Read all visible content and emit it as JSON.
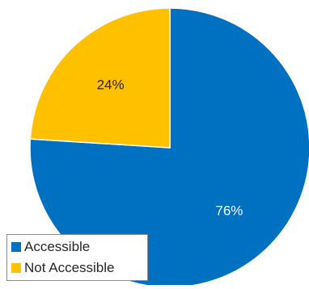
{
  "chart_data": {
    "type": "pie",
    "categories": [
      "Accessible",
      "Not Accessible"
    ],
    "values": [
      76,
      24
    ],
    "labels": [
      "76%",
      "24%"
    ],
    "colors": [
      "#0070C0",
      "#FFC000"
    ],
    "label_colors": [
      "#ffffff",
      "#262626"
    ],
    "start_angle_deg": 0,
    "direction": "clockwise",
    "legend": {
      "placement": "bottom-left",
      "entries": [
        "Accessible",
        "Not Accessible"
      ]
    },
    "title": ""
  }
}
